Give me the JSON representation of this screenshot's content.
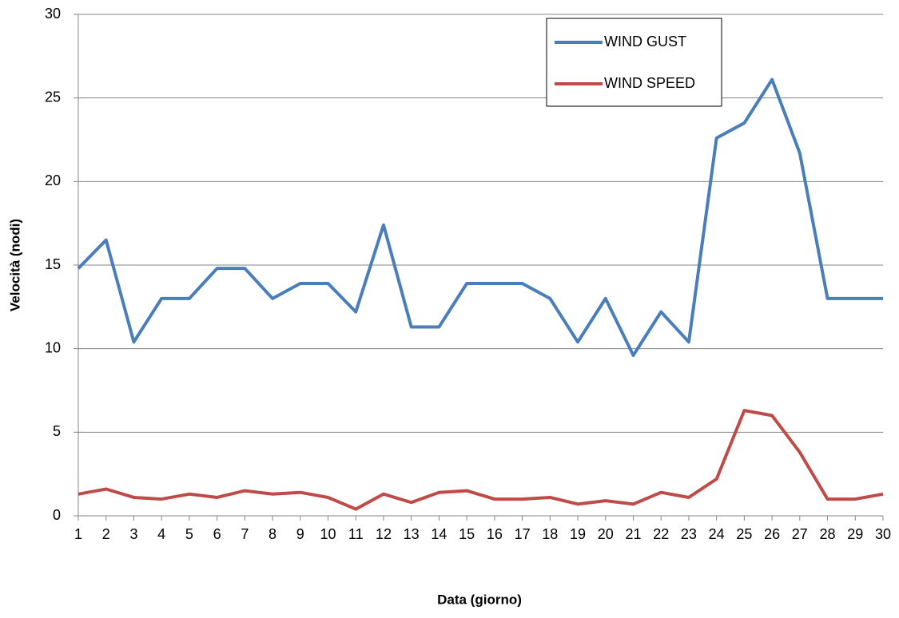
{
  "chart_data": {
    "type": "line",
    "xlabel": "Data (giorno)",
    "ylabel": "Velocità  (nodi)",
    "x": [
      1,
      2,
      3,
      4,
      5,
      6,
      7,
      8,
      9,
      10,
      11,
      12,
      13,
      14,
      15,
      16,
      17,
      18,
      19,
      20,
      21,
      22,
      23,
      24,
      25,
      26,
      27,
      28,
      29,
      30
    ],
    "series": [
      {
        "name": "WIND GUST",
        "color": "#4a7ebb",
        "values": [
          14.8,
          16.5,
          10.4,
          13.0,
          13.0,
          14.8,
          14.8,
          13.0,
          13.9,
          13.9,
          12.2,
          17.4,
          11.3,
          11.3,
          13.9,
          13.9,
          13.9,
          13.0,
          10.4,
          13.0,
          9.6,
          12.2,
          10.4,
          22.6,
          23.5,
          26.1,
          21.7,
          13.0,
          13.0,
          13.0
        ]
      },
      {
        "name": "WIND SPEED",
        "color": "#be4b48",
        "values": [
          1.3,
          1.6,
          1.1,
          1.0,
          1.3,
          1.1,
          1.5,
          1.3,
          1.4,
          1.1,
          0.4,
          1.3,
          0.8,
          1.4,
          1.5,
          1.0,
          1.0,
          1.1,
          0.7,
          0.9,
          0.7,
          1.4,
          1.1,
          2.2,
          6.3,
          6.0,
          3.8,
          1.0,
          1.0,
          1.3
        ]
      }
    ],
    "xlim": [
      1,
      30
    ],
    "xticks": [
      1,
      2,
      3,
      4,
      5,
      6,
      7,
      8,
      9,
      10,
      11,
      12,
      13,
      14,
      15,
      16,
      17,
      18,
      19,
      20,
      21,
      22,
      23,
      24,
      25,
      26,
      27,
      28,
      29,
      30
    ],
    "ylim": [
      0,
      30
    ],
    "yticks": [
      0,
      5,
      10,
      15,
      20,
      25,
      30
    ],
    "grid": true,
    "legend": "upper right"
  }
}
